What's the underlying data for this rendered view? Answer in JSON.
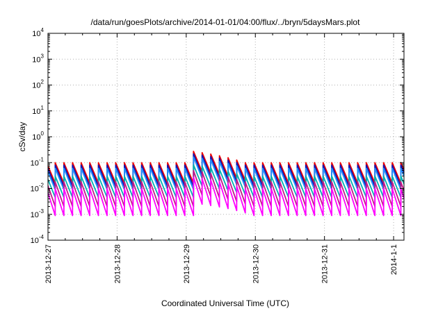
{
  "chart_data": {
    "type": "line",
    "title": "/data/run/goesPlots/archive/2014-01-01/04:00/flux/../bryn/5daysMars.plot",
    "xlabel": "Coordinated Universal Time (UTC)",
    "ylabel": "cSv/day",
    "yscale": "log",
    "ylim_exponents": [
      -4,
      4
    ],
    "y_tick_labels": [
      {
        "base": "10",
        "exp": "4"
      },
      {
        "base": "10",
        "exp": "3"
      },
      {
        "base": "10",
        "exp": "2"
      },
      {
        "base": "10",
        "exp": "1"
      },
      {
        "base": "10",
        "exp": "0"
      },
      {
        "base": "10",
        "exp": "-1"
      },
      {
        "base": "10",
        "exp": "-2"
      },
      {
        "base": "10",
        "exp": "-3"
      },
      {
        "base": "10",
        "exp": "-4"
      }
    ],
    "x_tick_labels": [
      "2013-12-27",
      "2013-12-28",
      "2013-12-29",
      "2013-12-30",
      "2013-12-31",
      "2014-1-1"
    ],
    "xlim_days": [
      0,
      5.15
    ],
    "grid": true,
    "legend": "none",
    "sawtooth_period_days": 0.125,
    "event": {
      "start_day": 2.0,
      "peak_factor": 3.0,
      "decay_days": 0.85
    },
    "series": [
      {
        "color": "#ee0000",
        "peak": 0.1,
        "trough": 0.016
      },
      {
        "color": "#1414b0",
        "peak": 0.08,
        "trough": 0.012
      },
      {
        "color": "#1e90ff",
        "peak": 0.06,
        "trough": 0.009
      },
      {
        "color": "#00b0b0",
        "peak": 0.03,
        "trough": 0.0045
      },
      {
        "color": "#c01888",
        "peak": 0.018,
        "trough": 0.002
      },
      {
        "color": "#ff00ff",
        "peak": 0.01,
        "trough": 0.0009
      }
    ]
  }
}
